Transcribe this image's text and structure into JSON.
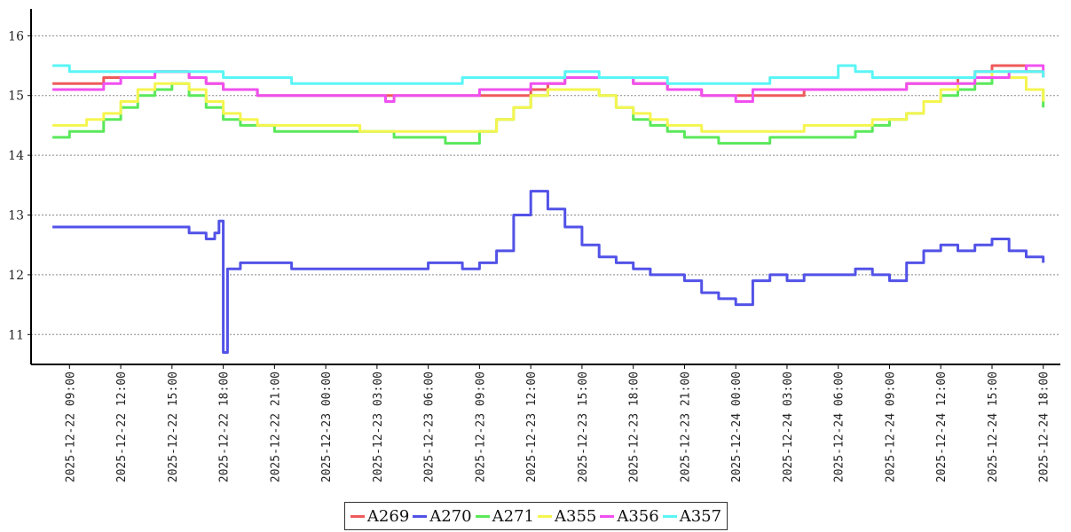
{
  "chart_data": {
    "type": "line",
    "title": "",
    "xlabel": "",
    "ylabel": "",
    "ylim": [
      10.5,
      16.45
    ],
    "yticks": [
      11,
      12,
      13,
      14,
      15,
      16
    ],
    "xlim": [
      "2025-12-22 06:45",
      "2025-12-24 19:00"
    ],
    "xticks": [
      "2025-12-22 09:00",
      "2025-12-22 12:00",
      "2025-12-22 15:00",
      "2025-12-22 18:00",
      "2025-12-22 21:00",
      "2025-12-23 00:00",
      "2025-12-23 03:00",
      "2025-12-23 06:00",
      "2025-12-23 09:00",
      "2025-12-23 12:00",
      "2025-12-23 15:00",
      "2025-12-23 18:00",
      "2025-12-23 21:00",
      "2025-12-24 00:00",
      "2025-12-24 03:00",
      "2025-12-24 06:00",
      "2025-12-24 09:00",
      "2025-12-24 12:00",
      "2025-12-24 15:00",
      "2025-12-24 18:00"
    ],
    "grid": "horizontal-dotted",
    "legend": "bottom",
    "series": [
      {
        "name": "A269",
        "color": "#ef5a5a",
        "x": [
          "2025-12-22 08:00",
          "2025-12-22 09:00",
          "2025-12-22 10:00",
          "2025-12-22 11:00",
          "2025-12-22 12:00",
          "2025-12-22 13:00",
          "2025-12-22 14:00",
          "2025-12-22 15:00",
          "2025-12-22 16:00",
          "2025-12-22 17:00",
          "2025-12-22 18:00",
          "2025-12-22 20:00",
          "2025-12-22 22:00",
          "2025-12-23 00:00",
          "2025-12-23 04:00",
          "2025-12-23 08:00",
          "2025-12-23 10:00",
          "2025-12-23 12:00",
          "2025-12-23 13:00",
          "2025-12-23 14:00",
          "2025-12-23 16:00",
          "2025-12-23 18:00",
          "2025-12-23 20:00",
          "2025-12-23 22:00",
          "2025-12-24 00:00",
          "2025-12-24 02:00",
          "2025-12-24 04:00",
          "2025-12-24 06:00",
          "2025-12-24 08:00",
          "2025-12-24 10:00",
          "2025-12-24 12:00",
          "2025-12-24 13:00",
          "2025-12-24 14:00",
          "2025-12-24 15:00",
          "2025-12-24 16:00",
          "2025-12-24 17:00",
          "2025-12-24 18:00"
        ],
        "values": [
          15.2,
          15.2,
          15.2,
          15.3,
          15.3,
          15.3,
          15.4,
          15.4,
          15.3,
          15.2,
          15.1,
          15.0,
          15.0,
          15.0,
          15.0,
          15.0,
          15.0,
          15.1,
          15.2,
          15.3,
          15.3,
          15.2,
          15.1,
          15.0,
          15.0,
          15.0,
          15.1,
          15.1,
          15.1,
          15.2,
          15.2,
          15.3,
          15.4,
          15.5,
          15.5,
          15.4,
          15.3
        ]
      },
      {
        "name": "A270",
        "color": "#5252e8",
        "x": [
          "2025-12-22 08:00",
          "2025-12-22 09:00",
          "2025-12-22 10:00",
          "2025-12-22 11:00",
          "2025-12-22 12:00",
          "2025-12-22 13:00",
          "2025-12-22 14:00",
          "2025-12-22 15:00",
          "2025-12-22 16:00",
          "2025-12-22 17:00",
          "2025-12-22 17:30",
          "2025-12-22 17:45",
          "2025-12-22 18:00",
          "2025-12-22 18:15",
          "2025-12-22 19:00",
          "2025-12-22 20:00",
          "2025-12-22 22:00",
          "2025-12-23 00:00",
          "2025-12-23 02:00",
          "2025-12-23 04:00",
          "2025-12-23 06:00",
          "2025-12-23 08:00",
          "2025-12-23 09:00",
          "2025-12-23 10:00",
          "2025-12-23 11:00",
          "2025-12-23 12:00",
          "2025-12-23 13:00",
          "2025-12-23 14:00",
          "2025-12-23 15:00",
          "2025-12-23 16:00",
          "2025-12-23 17:00",
          "2025-12-23 18:00",
          "2025-12-23 19:00",
          "2025-12-23 20:00",
          "2025-12-23 21:00",
          "2025-12-23 22:00",
          "2025-12-23 23:00",
          "2025-12-24 00:00",
          "2025-12-24 01:00",
          "2025-12-24 02:00",
          "2025-12-24 03:00",
          "2025-12-24 04:00",
          "2025-12-24 05:00",
          "2025-12-24 06:00",
          "2025-12-24 07:00",
          "2025-12-24 08:00",
          "2025-12-24 09:00",
          "2025-12-24 10:00",
          "2025-12-24 11:00",
          "2025-12-24 12:00",
          "2025-12-24 13:00",
          "2025-12-24 14:00",
          "2025-12-24 15:00",
          "2025-12-24 16:00",
          "2025-12-24 17:00",
          "2025-12-24 18:00"
        ],
        "values": [
          12.8,
          12.8,
          12.8,
          12.8,
          12.8,
          12.8,
          12.8,
          12.8,
          12.7,
          12.6,
          12.7,
          12.9,
          10.7,
          12.1,
          12.2,
          12.2,
          12.1,
          12.1,
          12.1,
          12.1,
          12.2,
          12.1,
          12.2,
          12.4,
          13.0,
          13.4,
          13.1,
          12.8,
          12.5,
          12.3,
          12.2,
          12.1,
          12.0,
          12.0,
          11.9,
          11.7,
          11.6,
          11.5,
          11.9,
          12.0,
          11.9,
          12.0,
          12.0,
          12.0,
          12.1,
          12.0,
          11.9,
          12.2,
          12.4,
          12.5,
          12.4,
          12.5,
          12.6,
          12.4,
          12.3,
          12.2
        ]
      },
      {
        "name": "A271",
        "color": "#5ae85a",
        "x": [
          "2025-12-22 08:00",
          "2025-12-22 09:00",
          "2025-12-22 10:00",
          "2025-12-22 11:00",
          "2025-12-22 12:00",
          "2025-12-22 13:00",
          "2025-12-22 14:00",
          "2025-12-22 15:00",
          "2025-12-22 16:00",
          "2025-12-22 17:00",
          "2025-12-22 18:00",
          "2025-12-22 19:00",
          "2025-12-22 20:00",
          "2025-12-22 21:00",
          "2025-12-22 22:00",
          "2025-12-23 00:00",
          "2025-12-23 02:00",
          "2025-12-23 04:00",
          "2025-12-23 06:00",
          "2025-12-23 07:00",
          "2025-12-23 08:00",
          "2025-12-23 09:00",
          "2025-12-23 10:00",
          "2025-12-23 11:00",
          "2025-12-23 12:00",
          "2025-12-23 13:00",
          "2025-12-23 14:00",
          "2025-12-23 15:00",
          "2025-12-23 16:00",
          "2025-12-23 17:00",
          "2025-12-23 18:00",
          "2025-12-23 19:00",
          "2025-12-23 20:00",
          "2025-12-23 21:00",
          "2025-12-23 22:00",
          "2025-12-23 23:00",
          "2025-12-24 00:00",
          "2025-12-24 01:00",
          "2025-12-24 02:00",
          "2025-12-24 04:00",
          "2025-12-24 06:00",
          "2025-12-24 07:00",
          "2025-12-24 08:00",
          "2025-12-24 09:00",
          "2025-12-24 10:00",
          "2025-12-24 11:00",
          "2025-12-24 12:00",
          "2025-12-24 13:00",
          "2025-12-24 14:00",
          "2025-12-24 15:00",
          "2025-12-24 16:00",
          "2025-12-24 17:00",
          "2025-12-24 18:00"
        ],
        "values": [
          14.3,
          14.4,
          14.4,
          14.6,
          14.8,
          15.0,
          15.1,
          15.2,
          15.0,
          14.8,
          14.6,
          14.5,
          14.5,
          14.4,
          14.4,
          14.4,
          14.4,
          14.3,
          14.3,
          14.2,
          14.2,
          14.4,
          14.6,
          14.8,
          15.0,
          15.1,
          15.1,
          15.1,
          15.0,
          14.8,
          14.6,
          14.5,
          14.4,
          14.3,
          14.3,
          14.2,
          14.2,
          14.2,
          14.3,
          14.3,
          14.3,
          14.4,
          14.5,
          14.6,
          14.7,
          14.9,
          15.0,
          15.1,
          15.2,
          15.3,
          15.3,
          15.1,
          14.8
        ]
      },
      {
        "name": "A355",
        "color": "#f5f550",
        "x": [
          "2025-12-22 08:00",
          "2025-12-22 09:00",
          "2025-12-22 10:00",
          "2025-12-22 11:00",
          "2025-12-22 12:00",
          "2025-12-22 13:00",
          "2025-12-22 14:00",
          "2025-12-22 15:00",
          "2025-12-22 16:00",
          "2025-12-22 17:00",
          "2025-12-22 18:00",
          "2025-12-22 19:00",
          "2025-12-22 20:00",
          "2025-12-22 22:00",
          "2025-12-23 00:00",
          "2025-12-23 02:00",
          "2025-12-23 04:00",
          "2025-12-23 06:00",
          "2025-12-23 08:00",
          "2025-12-23 09:00",
          "2025-12-23 10:00",
          "2025-12-23 11:00",
          "2025-12-23 12:00",
          "2025-12-23 13:00",
          "2025-12-23 14:00",
          "2025-12-23 15:00",
          "2025-12-23 16:00",
          "2025-12-23 17:00",
          "2025-12-23 18:00",
          "2025-12-23 19:00",
          "2025-12-23 20:00",
          "2025-12-23 22:00",
          "2025-12-24 00:00",
          "2025-12-24 02:00",
          "2025-12-24 04:00",
          "2025-12-24 06:00",
          "2025-12-24 08:00",
          "2025-12-24 09:00",
          "2025-12-24 10:00",
          "2025-12-24 11:00",
          "2025-12-24 12:00",
          "2025-12-24 13:00",
          "2025-12-24 14:00",
          "2025-12-24 15:00",
          "2025-12-24 16:00",
          "2025-12-24 17:00",
          "2025-12-24 18:00"
        ],
        "values": [
          14.5,
          14.5,
          14.6,
          14.7,
          14.9,
          15.1,
          15.2,
          15.2,
          15.1,
          14.9,
          14.7,
          14.6,
          14.5,
          14.5,
          14.5,
          14.4,
          14.4,
          14.4,
          14.4,
          14.4,
          14.6,
          14.8,
          15.0,
          15.1,
          15.1,
          15.1,
          15.0,
          14.8,
          14.7,
          14.6,
          14.5,
          14.4,
          14.4,
          14.4,
          14.5,
          14.5,
          14.6,
          14.6,
          14.7,
          14.9,
          15.1,
          15.2,
          15.3,
          15.4,
          15.3,
          15.1,
          14.9
        ]
      },
      {
        "name": "A356",
        "color": "#f050f0",
        "x": [
          "2025-12-22 08:00",
          "2025-12-22 09:00",
          "2025-12-22 10:00",
          "2025-12-22 11:00",
          "2025-12-22 12:00",
          "2025-12-22 13:00",
          "2025-12-22 14:00",
          "2025-12-22 15:00",
          "2025-12-22 16:00",
          "2025-12-22 17:00",
          "2025-12-22 18:00",
          "2025-12-22 20:00",
          "2025-12-22 22:00",
          "2025-12-23 00:00",
          "2025-12-23 03:00",
          "2025-12-23 03:30",
          "2025-12-23 04:00",
          "2025-12-23 08:00",
          "2025-12-23 09:00",
          "2025-12-23 10:00",
          "2025-12-23 11:00",
          "2025-12-23 12:00",
          "2025-12-23 13:00",
          "2025-12-23 14:00",
          "2025-12-23 16:00",
          "2025-12-23 18:00",
          "2025-12-23 20:00",
          "2025-12-23 22:00",
          "2025-12-24 00:00",
          "2025-12-24 01:00",
          "2025-12-24 02:00",
          "2025-12-24 04:00",
          "2025-12-24 08:00",
          "2025-12-24 10:00",
          "2025-12-24 12:00",
          "2025-12-24 14:00",
          "2025-12-24 16:00",
          "2025-12-24 17:00",
          "2025-12-24 18:00"
        ],
        "values": [
          15.1,
          15.1,
          15.1,
          15.2,
          15.3,
          15.3,
          15.4,
          15.4,
          15.3,
          15.2,
          15.1,
          15.0,
          15.0,
          15.0,
          15.0,
          14.9,
          15.0,
          15.0,
          15.1,
          15.1,
          15.1,
          15.2,
          15.2,
          15.3,
          15.3,
          15.2,
          15.1,
          15.0,
          14.9,
          15.1,
          15.1,
          15.1,
          15.1,
          15.2,
          15.2,
          15.3,
          15.4,
          15.5,
          15.4
        ]
      },
      {
        "name": "A357",
        "color": "#5af5f5",
        "x": [
          "2025-12-22 08:00",
          "2025-12-22 09:00",
          "2025-12-22 10:00",
          "2025-12-22 12:00",
          "2025-12-22 14:00",
          "2025-12-22 16:00",
          "2025-12-22 18:00",
          "2025-12-22 20:00",
          "2025-12-22 22:00",
          "2025-12-23 00:00",
          "2025-12-23 02:00",
          "2025-12-23 04:00",
          "2025-12-23 06:00",
          "2025-12-23 08:00",
          "2025-12-23 10:00",
          "2025-12-23 12:00",
          "2025-12-23 14:00",
          "2025-12-23 16:00",
          "2025-12-23 18:00",
          "2025-12-23 20:00",
          "2025-12-23 22:00",
          "2025-12-24 00:00",
          "2025-12-24 01:00",
          "2025-12-24 02:00",
          "2025-12-24 04:00",
          "2025-12-24 05:00",
          "2025-12-24 06:00",
          "2025-12-24 07:00",
          "2025-12-24 08:00",
          "2025-12-24 10:00",
          "2025-12-24 12:00",
          "2025-12-24 14:00",
          "2025-12-24 16:00",
          "2025-12-24 17:00",
          "2025-12-24 18:00"
        ],
        "values": [
          15.5,
          15.4,
          15.4,
          15.4,
          15.4,
          15.4,
          15.3,
          15.3,
          15.2,
          15.2,
          15.2,
          15.2,
          15.2,
          15.3,
          15.3,
          15.3,
          15.4,
          15.3,
          15.3,
          15.2,
          15.2,
          15.2,
          15.2,
          15.3,
          15.3,
          15.3,
          15.5,
          15.4,
          15.3,
          15.3,
          15.3,
          15.4,
          15.4,
          15.4,
          15.3
        ]
      }
    ]
  }
}
